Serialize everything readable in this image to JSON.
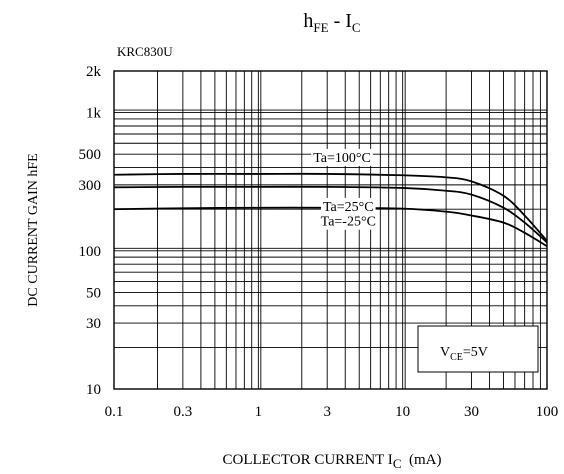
{
  "chart_data": {
    "type": "line",
    "title": {
      "main": "h",
      "main_sub": "FE",
      "sep": " - ",
      "var": "I",
      "var_sub": "C"
    },
    "subtitle": "KRC830U",
    "xlabel": {
      "pre": "COLLECTOR CURRENT I",
      "sub": "C",
      "post": "  (mA)"
    },
    "ylabel": "DC CURRENT GAIN hFE",
    "x_scale": "log",
    "y_scale": "log",
    "xlim": [
      0.1,
      100
    ],
    "ylim": [
      10,
      2000
    ],
    "grid": true,
    "x_ticks": [
      {
        "value": 0.1,
        "label": "0.1"
      },
      {
        "value": 0.3,
        "label": "0.3"
      },
      {
        "value": 1,
        "label": "1"
      },
      {
        "value": 3,
        "label": "3"
      },
      {
        "value": 10,
        "label": "10"
      },
      {
        "value": 30,
        "label": "30"
      },
      {
        "value": 100,
        "label": "100"
      }
    ],
    "y_ticks": [
      {
        "value": 10,
        "label": "10"
      },
      {
        "value": 30,
        "label": "30"
      },
      {
        "value": 50,
        "label": "50"
      },
      {
        "value": 100,
        "label": "100"
      },
      {
        "value": 300,
        "label": "300"
      },
      {
        "value": 500,
        "label": "500"
      },
      {
        "value": 1000,
        "label": "1k"
      },
      {
        "value": 2000,
        "label": "2k"
      }
    ],
    "series": [
      {
        "name": "Ta=100°C",
        "x": [
          0.1,
          0.3,
          1,
          3,
          10,
          20,
          30,
          50,
          70,
          100
        ],
        "y": [
          355,
          360,
          360,
          360,
          352,
          340,
          318,
          250,
          180,
          118
        ]
      },
      {
        "name": "Ta=25°C",
        "x": [
          0.1,
          0.3,
          1,
          3,
          10,
          20,
          30,
          50,
          70,
          100
        ],
        "y": [
          288,
          290,
          290,
          290,
          285,
          272,
          255,
          205,
          160,
          115
        ]
      },
      {
        "name": "Ta=-25°C",
        "x": [
          0.1,
          0.3,
          1,
          3,
          10,
          20,
          30,
          50,
          70,
          100
        ],
        "y": [
          200,
          203,
          205,
          205,
          202,
          192,
          180,
          160,
          135,
          108
        ]
      }
    ],
    "annotation": {
      "pre": "V",
      "sub": "CE",
      "post": "=5V"
    }
  }
}
